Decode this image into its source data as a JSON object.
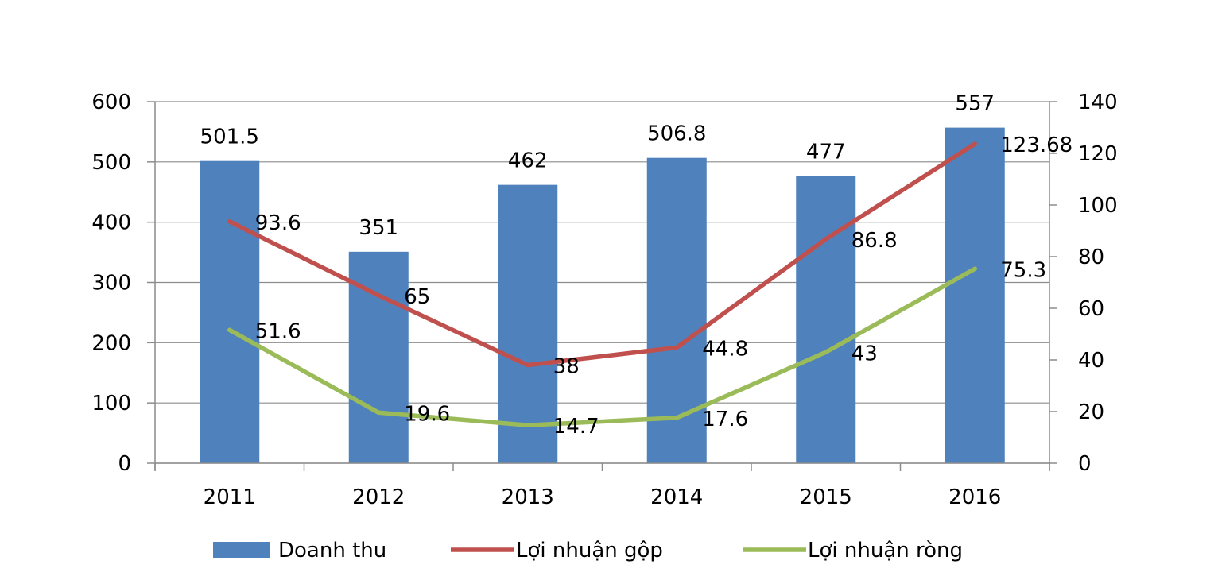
{
  "chart_data": {
    "type": "bar",
    "categories": [
      "2011",
      "2012",
      "2013",
      "2014",
      "2015",
      "2016"
    ],
    "title": "",
    "xlabel": "",
    "ylabel": "",
    "ylim": [
      0,
      600
    ],
    "yticks": [
      0,
      100,
      200,
      300,
      400,
      500,
      600
    ],
    "y2lim": [
      0,
      140
    ],
    "y2ticks": [
      0,
      20,
      40,
      60,
      80,
      100,
      120,
      140
    ],
    "grid": true,
    "legend": "bottom",
    "series": [
      {
        "name": "Doanh thu",
        "type": "bar",
        "axis": "left",
        "color": "#4F81BD",
        "values": [
          501.5,
          351,
          462,
          506.8,
          477,
          557
        ],
        "labels": [
          "501.5",
          "351",
          "462",
          "506.8",
          "477",
          "557"
        ]
      },
      {
        "name": "Lợi nhuận gộp",
        "type": "line",
        "axis": "right",
        "color": "#C0504D",
        "values": [
          93.6,
          65,
          38,
          44.8,
          86.8,
          123.68
        ],
        "labels": [
          "93.6",
          "65",
          "38",
          "44.8",
          "86.8",
          "123.68"
        ]
      },
      {
        "name": "Lợi nhuận ròng",
        "type": "line",
        "axis": "right",
        "color": "#9BBB59",
        "values": [
          51.6,
          19.6,
          14.7,
          17.6,
          43,
          75.3
        ],
        "labels": [
          "51.6",
          "19.6",
          "14.7",
          "17.6",
          "43",
          "75.3"
        ]
      }
    ]
  }
}
